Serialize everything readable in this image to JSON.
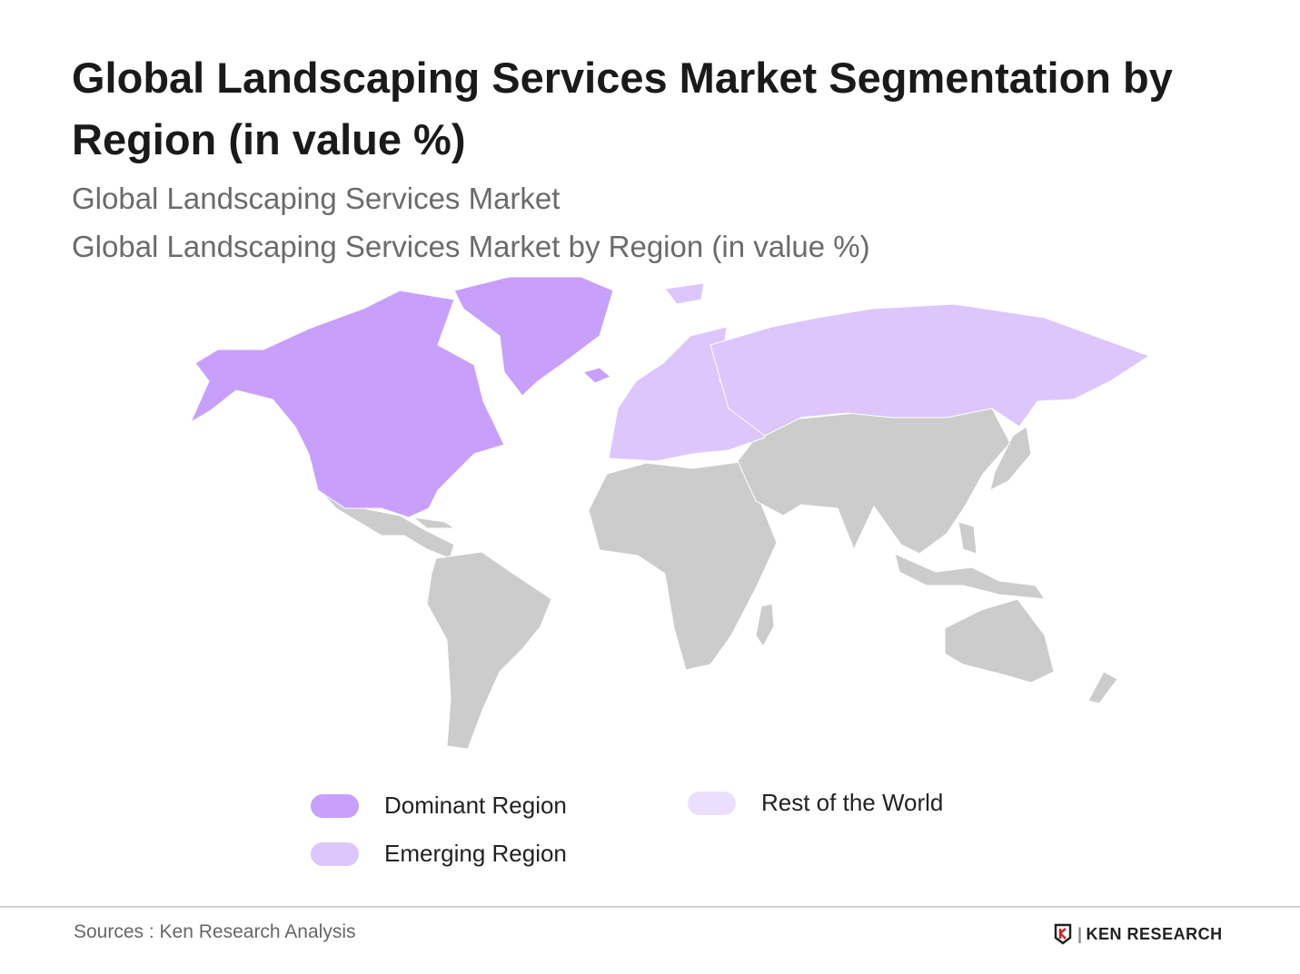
{
  "title": "Global Landscaping Services Market Segmentation by Region (in value %)",
  "subtitle1": "Global Landscaping Services Market",
  "subtitle2": "Global Landscaping Services Market by Region (in value %)",
  "legend": [
    {
      "label": "Dominant Region",
      "color": "#c8a0fb"
    },
    {
      "label": "Emerging Region",
      "color": "#dcc6fc"
    },
    {
      "label": "Rest of the World",
      "color": "#ecdffd"
    }
  ],
  "map_regions": {
    "North America & Greenland": "Dominant Region",
    "Europe & Russia": "Emerging Region",
    "Other countries": "#cccccc"
  },
  "source": "Sources : Ken Research Analysis",
  "logo_text": "KEN RESEARCH"
}
